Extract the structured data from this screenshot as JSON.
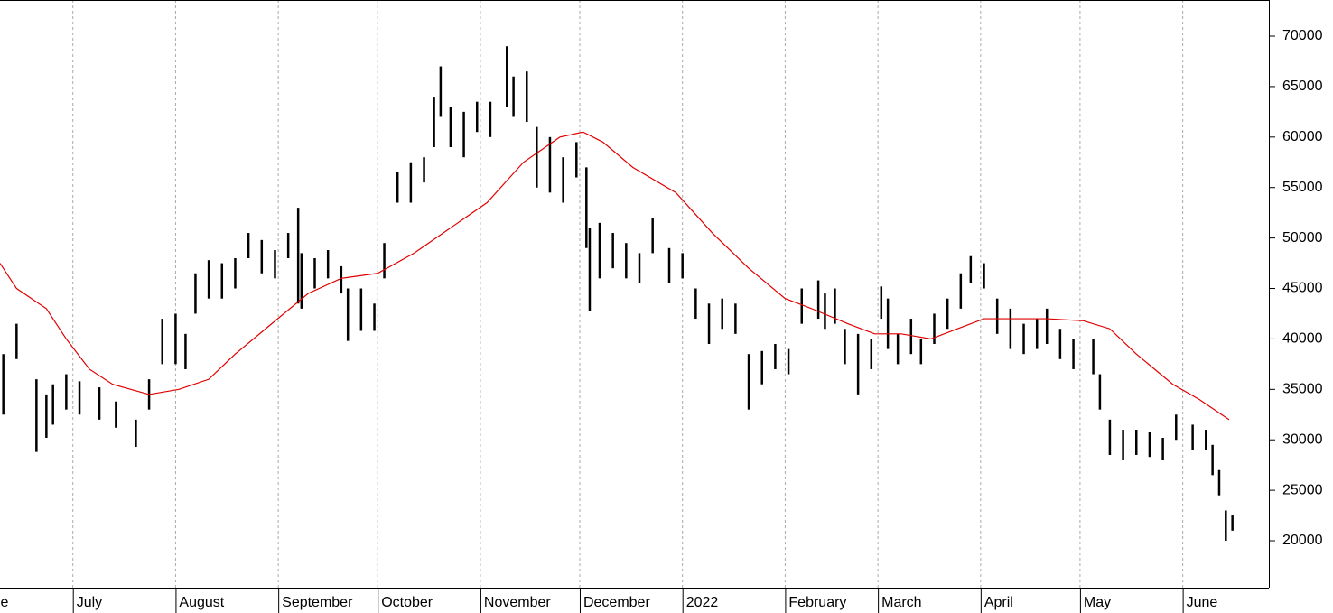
{
  "chart_data": {
    "type": "hilo",
    "xlim": [
      -22,
      361
    ],
    "ylim": [
      15350,
      73580
    ],
    "yticks": [
      20000,
      25000,
      30000,
      35000,
      40000,
      45000,
      50000,
      55000,
      60000,
      65000,
      70000
    ],
    "xticks": [
      {
        "value": -30,
        "label": "June"
      },
      {
        "value": 0,
        "label": "July"
      },
      {
        "value": 31,
        "label": "August"
      },
      {
        "value": 62,
        "label": "September"
      },
      {
        "value": 92,
        "label": "October"
      },
      {
        "value": 123,
        "label": "November"
      },
      {
        "value": 153,
        "label": "December"
      },
      {
        "value": 184,
        "label": "2022"
      },
      {
        "value": 215,
        "label": "February"
      },
      {
        "value": 243,
        "label": "March"
      },
      {
        "value": 274,
        "label": "April"
      },
      {
        "value": 304,
        "label": "May"
      },
      {
        "value": 335,
        "label": "June"
      }
    ],
    "xgrid": true,
    "series": [
      {
        "color": "#000000",
        "x": [
          -21,
          -17,
          -11,
          -8,
          -6,
          -2,
          2,
          8,
          13,
          19,
          23,
          27,
          31,
          34,
          37,
          41,
          45,
          49,
          53,
          57,
          61,
          65,
          68,
          69,
          73,
          77,
          81,
          83,
          87,
          91,
          94,
          98,
          102,
          106,
          109,
          111,
          114,
          118,
          122,
          126,
          131,
          133,
          137,
          140,
          144,
          148,
          152,
          155,
          156,
          159,
          163,
          167,
          171,
          175,
          180,
          184,
          188,
          192,
          196,
          200,
          204,
          208,
          212,
          216,
          220,
          225,
          227,
          230,
          233,
          237,
          241,
          244,
          246,
          249,
          253,
          256,
          260,
          264,
          268,
          271,
          275,
          279,
          283,
          287,
          291,
          294,
          298,
          302,
          308,
          310,
          313,
          317,
          321,
          325,
          329,
          333,
          338,
          342,
          344,
          346,
          348,
          350
        ],
        "high": [
          38500,
          41500,
          36000,
          34500,
          35500,
          36500,
          35800,
          35200,
          33800,
          32000,
          36000,
          42000,
          42500,
          40500,
          46500,
          47800,
          47500,
          48000,
          50500,
          49800,
          48800,
          50500,
          53000,
          48500,
          48000,
          48800,
          47200,
          45000,
          45000,
          43500,
          49500,
          56500,
          57500,
          58000,
          64000,
          67000,
          63000,
          62500,
          63500,
          63500,
          69000,
          66000,
          66500,
          61000,
          60000,
          58000,
          59500,
          57000,
          51000,
          51500,
          50500,
          49500,
          48500,
          52000,
          49000,
          48500,
          45000,
          43500,
          44000,
          43500,
          38500,
          38800,
          39500,
          39000,
          45000,
          45800,
          44500,
          45000,
          41000,
          40500,
          40000,
          45200,
          44000,
          40500,
          42000,
          40000,
          42500,
          44000,
          46500,
          48200,
          47500,
          44000,
          43000,
          41500,
          42000,
          43000,
          41000,
          40000,
          40000,
          36500,
          32000,
          31000,
          31000,
          30800,
          30200,
          32500,
          31500,
          31000,
          29500,
          27000,
          23000,
          22500
        ],
        "low": [
          32500,
          38000,
          28800,
          30200,
          31500,
          33000,
          32500,
          32000,
          31200,
          29300,
          33000,
          37500,
          37500,
          37000,
          42500,
          44000,
          44000,
          45000,
          48000,
          46500,
          46000,
          48000,
          43500,
          43000,
          45000,
          46000,
          44500,
          39800,
          40800,
          40800,
          46000,
          53500,
          53500,
          55500,
          59000,
          62000,
          59000,
          58000,
          60500,
          60000,
          63000,
          62000,
          61500,
          55000,
          54500,
          53500,
          56000,
          49000,
          42800,
          46000,
          47000,
          46000,
          45500,
          48500,
          45500,
          46000,
          42000,
          39500,
          41000,
          40500,
          33000,
          35500,
          37000,
          36500,
          41500,
          42000,
          41000,
          41500,
          37500,
          34500,
          37000,
          42000,
          39000,
          37500,
          38500,
          37500,
          39500,
          41000,
          43000,
          45500,
          45000,
          40500,
          39000,
          38500,
          39000,
          39500,
          38000,
          37000,
          36500,
          33000,
          28500,
          28000,
          28500,
          28300,
          28000,
          30000,
          29000,
          29000,
          26500,
          24500,
          20000,
          21000
        ]
      },
      {
        "type": "line",
        "color": "#e00000",
        "x": [
          -22,
          -17,
          -8,
          -2,
          5,
          12,
          23,
          32,
          41,
          49,
          60,
          71,
          81,
          92,
          103,
          114,
          125,
          136,
          147,
          154,
          160,
          169,
          182,
          193,
          204,
          215,
          223,
          234,
          242,
          250,
          259,
          267,
          275,
          283,
          294,
          305,
          313,
          321,
          332,
          340,
          349
        ],
        "values": [
          47500,
          45000,
          43000,
          40000,
          37000,
          35500,
          34500,
          35000,
          36000,
          38500,
          41500,
          44500,
          46000,
          46500,
          48500,
          51000,
          53500,
          57500,
          60000,
          60500,
          59500,
          57000,
          54500,
          50500,
          47000,
          44000,
          43000,
          41500,
          40500,
          40500,
          40000,
          41000,
          42000,
          42000,
          42000,
          41800,
          41000,
          38500,
          35500,
          34000,
          32000
        ]
      }
    ]
  }
}
